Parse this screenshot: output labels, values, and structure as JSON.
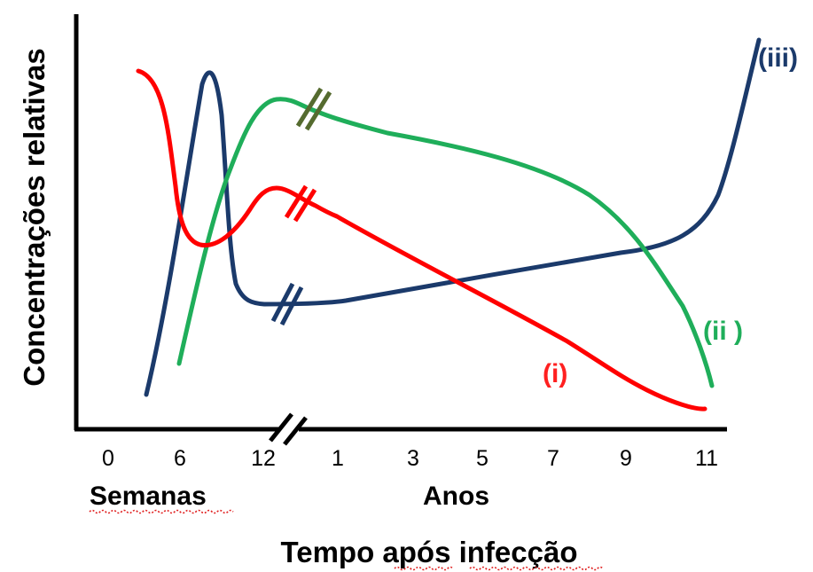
{
  "chart_data": {
    "type": "line",
    "xlabel": "Tempo após infecção",
    "ylabel": "Concentrações relativas",
    "x_segments": [
      {
        "label": "Semanas",
        "ticks": [
          "0",
          "6",
          "12"
        ]
      },
      {
        "label": "Anos",
        "ticks": [
          "1",
          "3",
          "5",
          "7",
          "9",
          "11"
        ]
      }
    ],
    "axis_break": true,
    "y_ticks": false,
    "grid": false,
    "legend": "none",
    "series": [
      {
        "name": "(i)",
        "color": "#ff0000",
        "points": [
          {
            "x": "Semanas 3",
            "y": 0.88
          },
          {
            "x": "Semanas 5",
            "y": 0.58
          },
          {
            "x": "Semanas 7",
            "y": 0.45
          },
          {
            "x": "Semanas 12",
            "y": 0.59
          },
          {
            "x": "Anos 1",
            "y": 0.55
          },
          {
            "x": "Anos 5",
            "y": 0.33
          },
          {
            "x": "Anos 9",
            "y": 0.1
          },
          {
            "x": "Anos 11",
            "y": 0.05
          }
        ]
      },
      {
        "name": "(ii )",
        "color": "#1fae5a",
        "points": [
          {
            "x": "Semanas 6",
            "y": 0.16
          },
          {
            "x": "Semanas 9",
            "y": 0.62
          },
          {
            "x": "Semanas 12",
            "y": 0.81
          },
          {
            "x": "Anos 1",
            "y": 0.78
          },
          {
            "x": "Anos 3",
            "y": 0.72
          },
          {
            "x": "Anos 7",
            "y": 0.56
          },
          {
            "x": "Anos 9",
            "y": 0.38
          },
          {
            "x": "Anos 11",
            "y": 0.08
          }
        ]
      },
      {
        "name": "(iii)",
        "color": "#1b3a6b",
        "points": [
          {
            "x": "Semanas 3",
            "y": 0.08
          },
          {
            "x": "Semanas 8",
            "y": 0.9
          },
          {
            "x": "Semanas 11",
            "y": 0.33
          },
          {
            "x": "Anos 1",
            "y": 0.33
          },
          {
            "x": "Anos 5",
            "y": 0.4
          },
          {
            "x": "Anos 9",
            "y": 0.47
          },
          {
            "x": "Anos 11",
            "y": 0.6
          },
          {
            "x": "Anos 12",
            "y": 1.0
          }
        ]
      }
    ]
  },
  "text": {
    "ylabel": "Concentrações relativas",
    "xlabel": "Tempo após infecção",
    "weeks_label": "Semanas",
    "years_label": "Anos",
    "tick_weeks": [
      "0",
      "6",
      "12"
    ],
    "tick_years": [
      "1",
      "3",
      "5",
      "7",
      "9",
      "11"
    ],
    "label_i": "(i)",
    "label_ii": "(ii )",
    "label_iii": "(iii)"
  },
  "colors": {
    "red": "#ff0000",
    "green": "#1fae5a",
    "navy": "#1b3a6b",
    "break_green": "#556b2f",
    "break_red": "#e02020",
    "break_navy": "#1b3a6b",
    "axis": "#000000"
  }
}
